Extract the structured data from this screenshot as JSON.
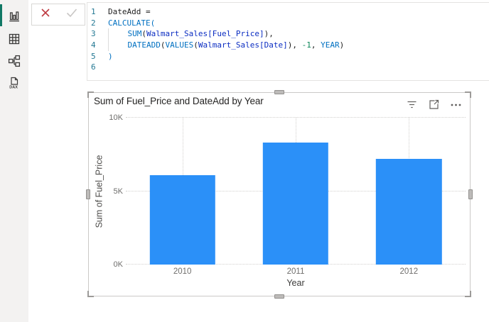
{
  "sidebar": {
    "accent_color": "#117865",
    "items": [
      {
        "name": "report-view",
        "active": true
      },
      {
        "name": "data-view",
        "active": false
      },
      {
        "name": "model-view",
        "active": false
      },
      {
        "name": "dax-query-view",
        "active": false,
        "label": "DAX"
      }
    ]
  },
  "formula_bar": {
    "cancel_color": "#BE3A41",
    "commit_color": "#C8C6C4"
  },
  "formula_editor": {
    "lines": [
      {
        "num": "1",
        "tokens": [
          {
            "t": "DateAdd =",
            "c": "plain"
          }
        ]
      },
      {
        "num": "2",
        "tokens": [
          {
            "t": "CALCULATE(",
            "c": "func"
          }
        ]
      },
      {
        "num": "3",
        "tokens": [
          {
            "t": "",
            "c": "guide"
          },
          {
            "t": "    ",
            "c": "plain"
          },
          {
            "t": "SUM",
            "c": "func"
          },
          {
            "t": "(",
            "c": "plain"
          },
          {
            "t": "Walmart_Sales[Fuel_Price]",
            "c": "ref"
          },
          {
            "t": "),",
            "c": "plain"
          }
        ]
      },
      {
        "num": "4",
        "tokens": [
          {
            "t": "",
            "c": "guide"
          },
          {
            "t": "    ",
            "c": "plain"
          },
          {
            "t": "DATEADD",
            "c": "func"
          },
          {
            "t": "(",
            "c": "plain"
          },
          {
            "t": "VALUES",
            "c": "func"
          },
          {
            "t": "(",
            "c": "plain"
          },
          {
            "t": "Walmart_Sales[Date]",
            "c": "ref"
          },
          {
            "t": "), ",
            "c": "plain"
          },
          {
            "t": "-1",
            "c": "num"
          },
          {
            "t": ", ",
            "c": "plain"
          },
          {
            "t": "YEAR",
            "c": "func"
          },
          {
            "t": ")",
            "c": "plain"
          }
        ]
      },
      {
        "num": "5",
        "tokens": [
          {
            "t": ")",
            "c": "func"
          }
        ]
      },
      {
        "num": "6",
        "tokens": []
      }
    ]
  },
  "visual": {
    "title": "Sum of Fuel_Price and DateAdd by Year",
    "header_icons": [
      {
        "name": "filter-icon"
      },
      {
        "name": "focus-mode-icon"
      },
      {
        "name": "more-options-icon"
      }
    ],
    "selected": true
  },
  "chart_data": {
    "type": "bar",
    "title": "Sum of Fuel_Price and DateAdd by Year",
    "categories": [
      "2010",
      "2011",
      "2012"
    ],
    "values": [
      6100,
      8300,
      7200
    ],
    "xlabel": "Year",
    "ylabel": "Sum of Fuel_Price",
    "ylim": [
      0,
      10000
    ],
    "yticks": [
      "0K",
      "5K",
      "10K"
    ],
    "bar_color": "#2B90F8",
    "gridlines": "dotted",
    "legend": false
  }
}
